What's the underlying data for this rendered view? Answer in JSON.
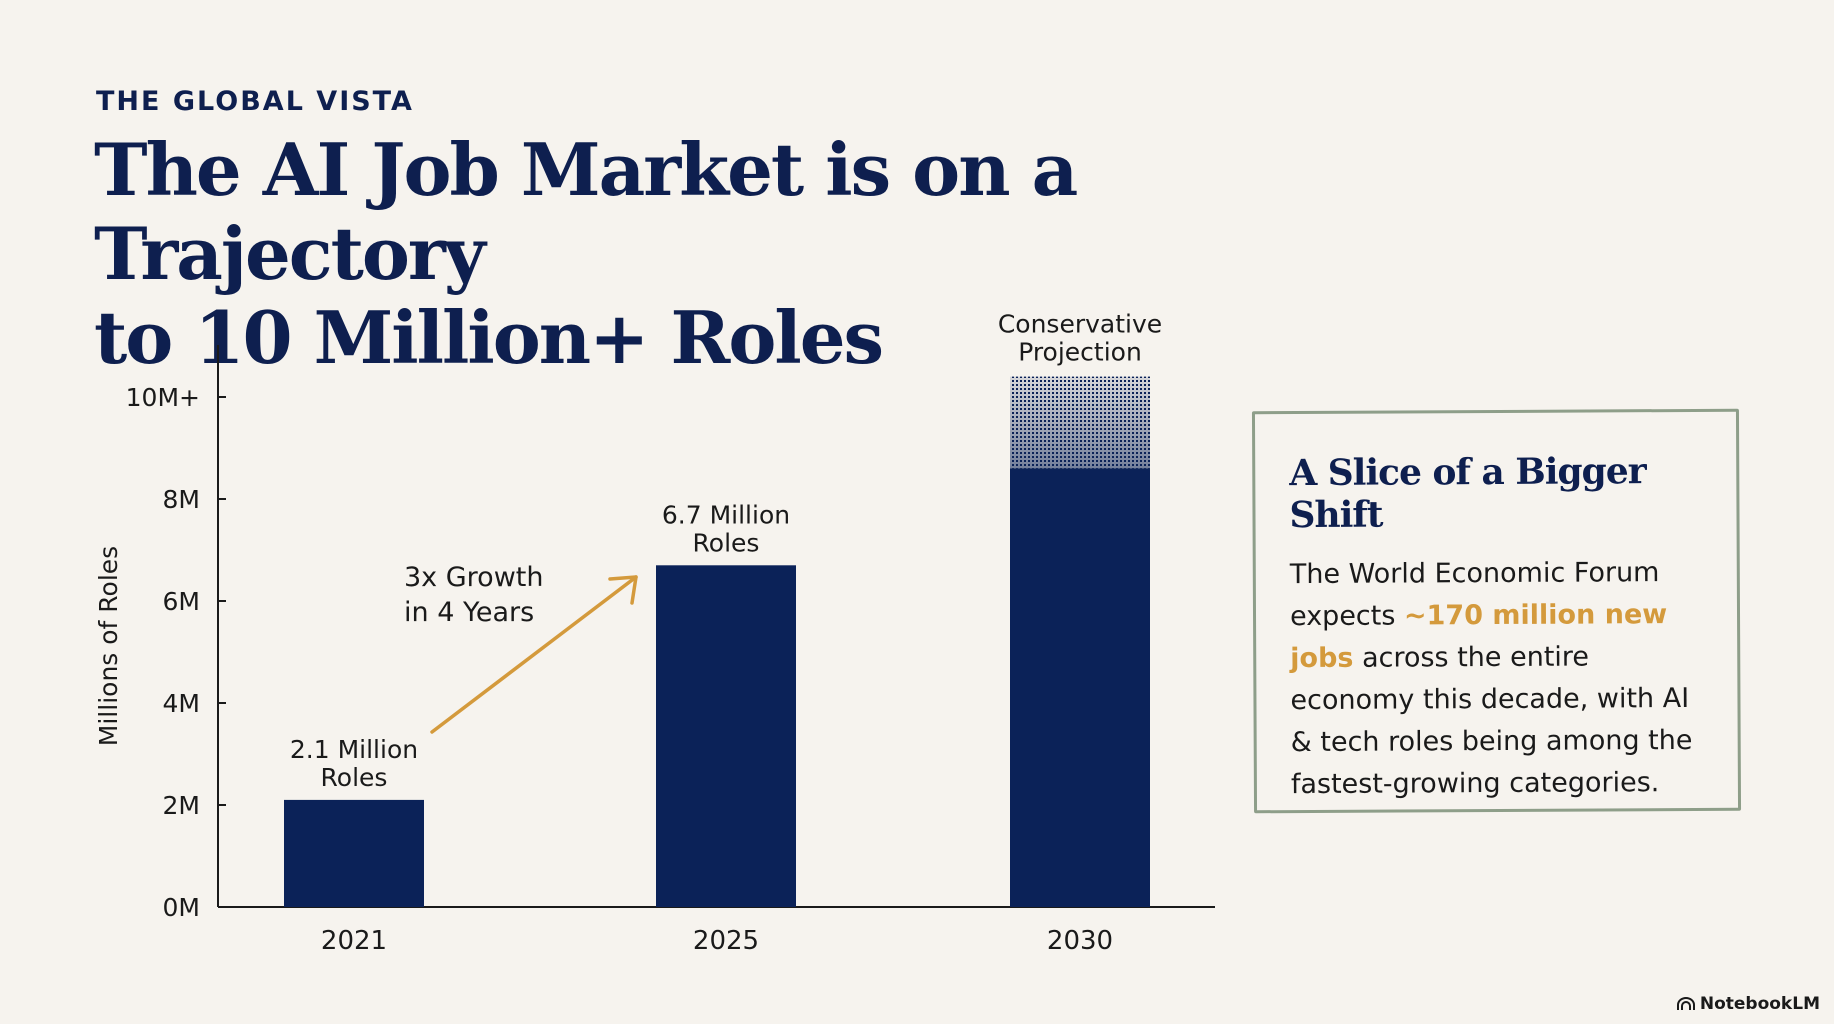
{
  "header": {
    "eyebrow": "THE GLOBAL VISTA",
    "title_line1": "The AI Job Market is on a Trajectory",
    "title_line2": "to 10 Million+ Roles"
  },
  "chart_data": {
    "type": "bar",
    "categories": [
      "2021",
      "2025",
      "2030"
    ],
    "values": [
      2.1,
      6.7,
      10.4
    ],
    "projected": [
      false,
      false,
      true
    ],
    "bar_labels": [
      [
        "2.1 Million",
        "Roles"
      ],
      [
        "6.7 Million",
        "Roles"
      ],
      [
        "Conservative",
        "Projection"
      ]
    ],
    "ylabel": "Millions of Roles",
    "yticks": [
      0,
      2,
      4,
      6,
      8,
      10
    ],
    "ytick_labels": [
      "0M",
      "2M",
      "4M",
      "6M",
      "8M",
      "10M+"
    ],
    "ylim": [
      0,
      11
    ],
    "annotation": {
      "lines": [
        "3x Growth",
        "in 4 Years"
      ],
      "from": "2021",
      "to": "2025"
    },
    "colors": {
      "bar": "#0b2258",
      "arrow": "#d49a3c",
      "axis": "#1a1a1a"
    }
  },
  "callout": {
    "title": "A Slice of a Bigger Shift",
    "text_before": "The World Economic Forum expects ",
    "highlight": "~170 million new jobs",
    "text_after": " across the entire economy this decade, with AI & tech roles being among the fastest-growing categories."
  },
  "brand": {
    "name": "NotebookLM",
    "icon": "notebooklm-logo-icon"
  }
}
